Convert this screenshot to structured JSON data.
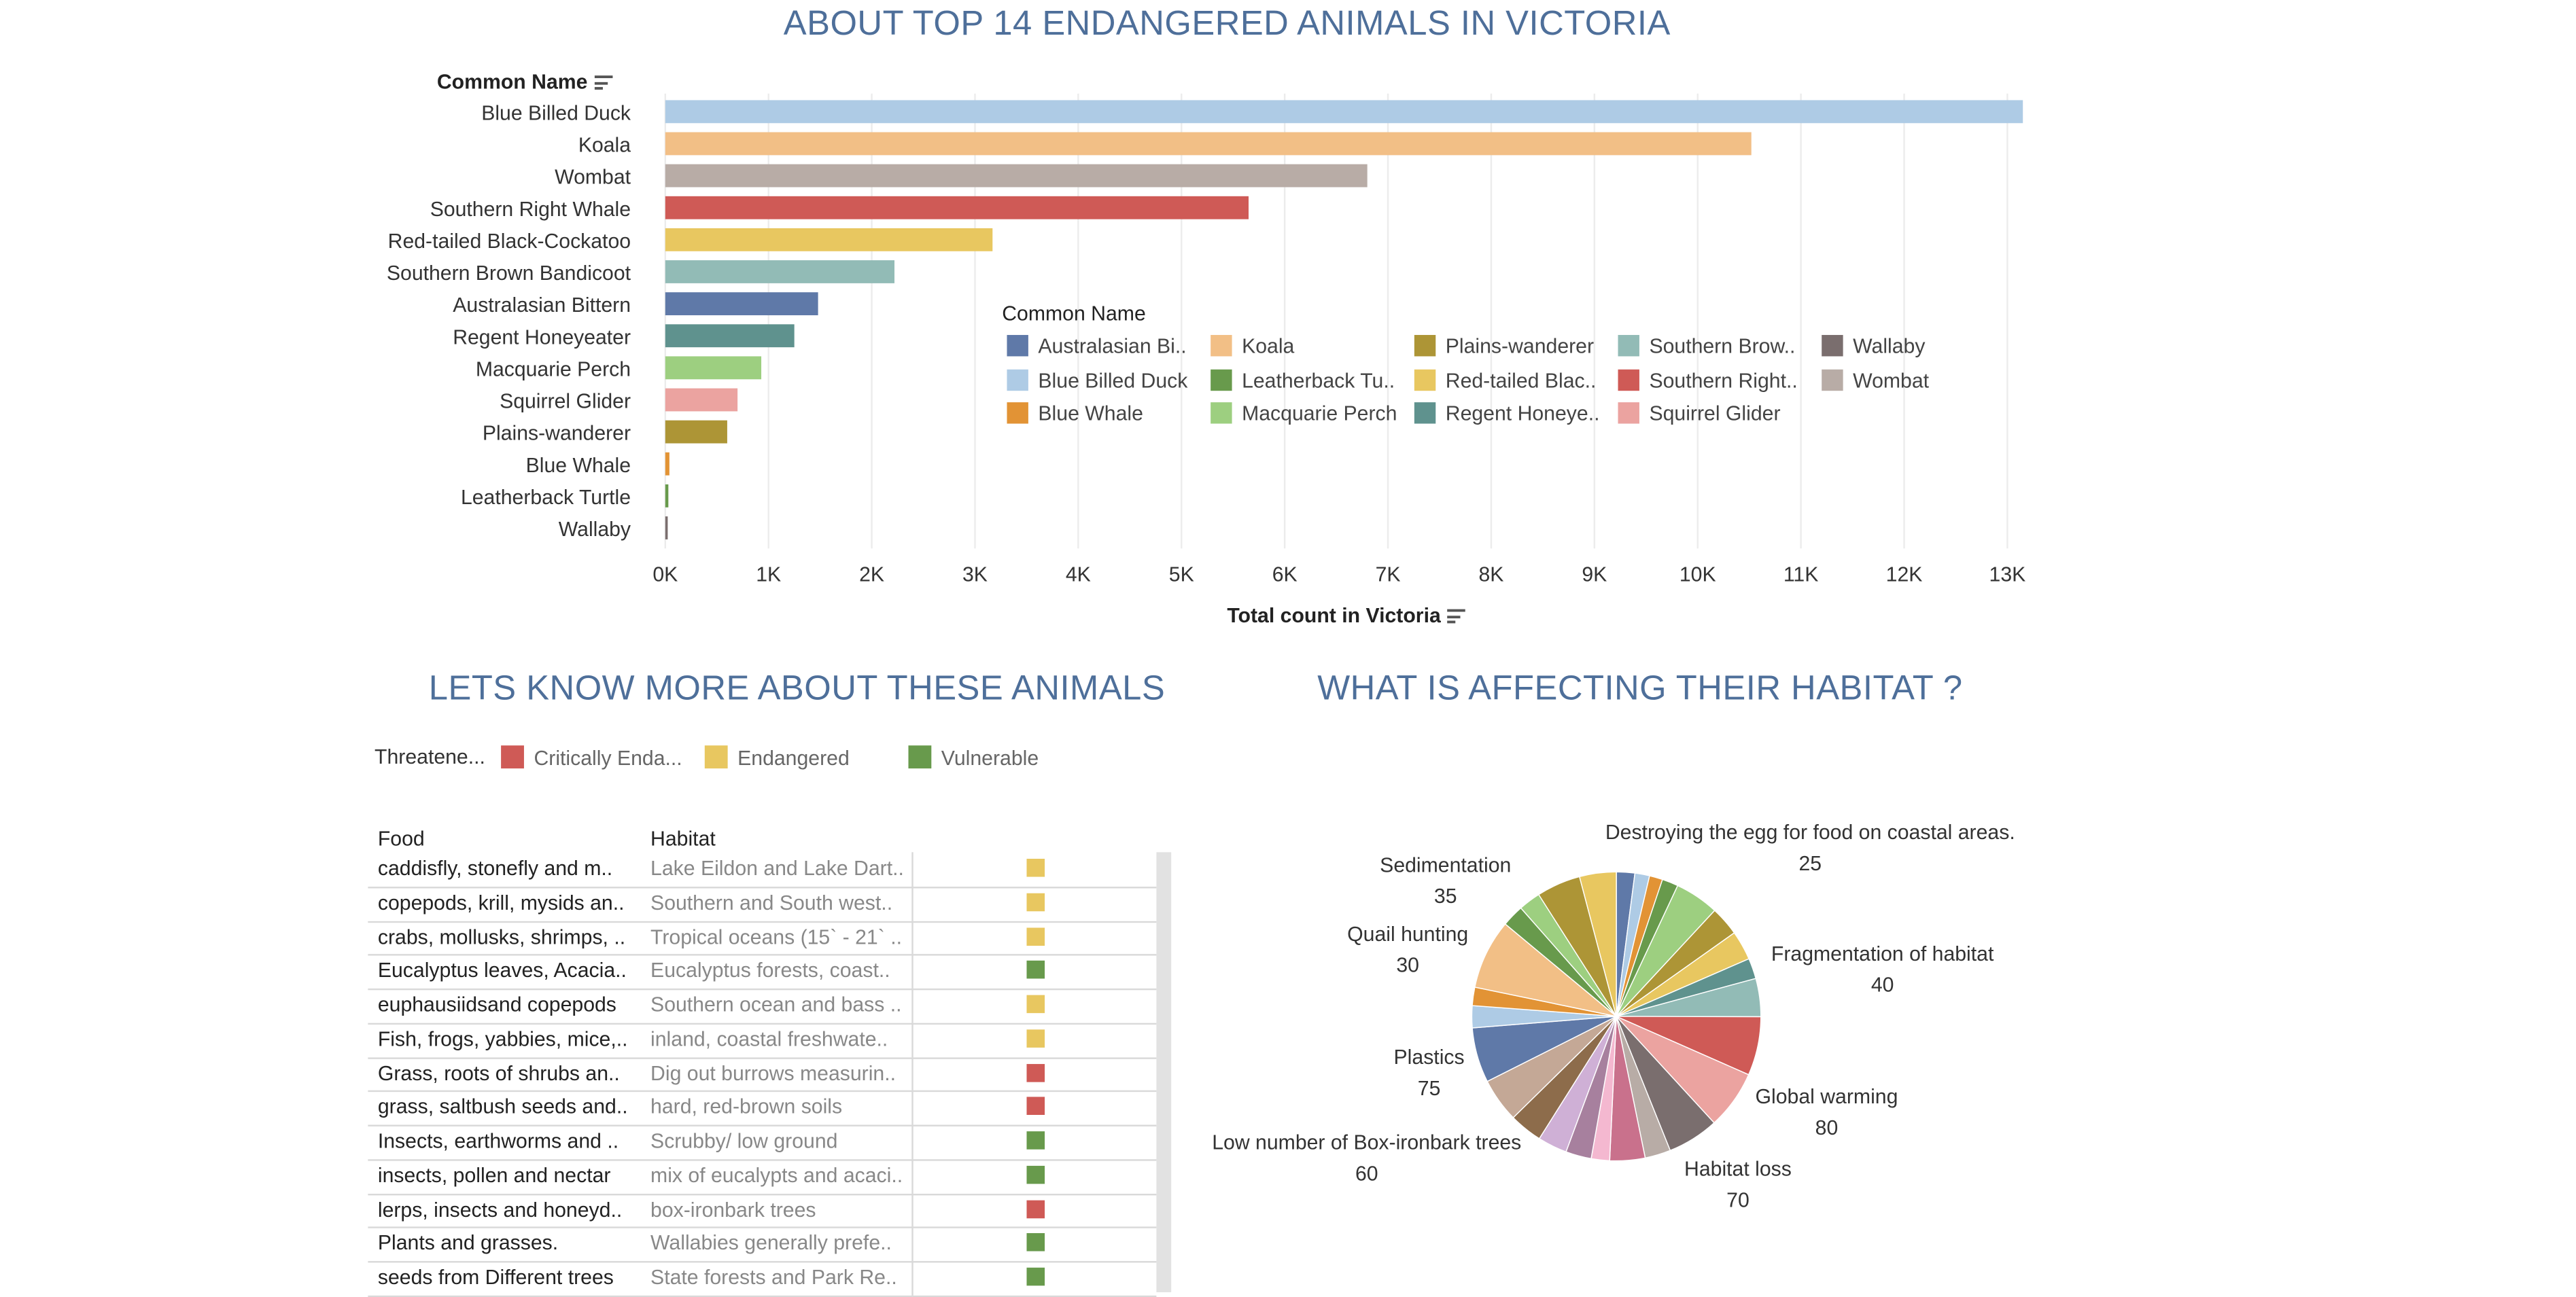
{
  "colors": {
    "title": "#4e6f9a",
    "species": {
      "Australasian Bittern": "#5f79a8",
      "Blue Billed Duck": "#aecbe5",
      "Blue Whale": "#e29335",
      "Koala": "#f2bf86",
      "Leatherback Turtle": "#689a4c",
      "Macquarie Perch": "#9dcf80",
      "Plains-wanderer": "#ad9536",
      "Red-tailed Black-Cockatoo": "#e8c760",
      "Regent Honeyeater": "#5f928e",
      "Southern Brown Bandicoot": "#92bbb6",
      "Southern Right Whale": "#cf5a56",
      "Squirrel Glider": "#eba3a0",
      "Wallaby": "#7a6e6e",
      "Wombat": "#b8aca6"
    },
    "status": {
      "Critically Endangered": "#cf5a56",
      "Endangered": "#e8c760",
      "Vulnerable": "#689a4c"
    }
  },
  "bar_section": {
    "title": "ABOUT TOP 14 ENDANGERED ANIMALS IN VICTORIA",
    "row_header": "Common Name",
    "axis_label": "Total count in Victoria",
    "legend_title": "Common Name",
    "legend_items": [
      "Australasian Bi..",
      "Blue Billed Duck",
      "Blue Whale",
      "Koala",
      "Leatherback Tu..",
      "Macquarie Perch",
      "Plains-wanderer",
      "Red-tailed Blac..",
      "Regent Honeye..",
      "Southern Brow..",
      "Southern Right..",
      "Squirrel Glider",
      "Wallaby",
      "Wombat"
    ],
    "legend_keys": [
      "Australasian Bittern",
      "Blue Billed Duck",
      "Blue Whale",
      "Koala",
      "Leatherback Turtle",
      "Macquarie Perch",
      "Plains-wanderer",
      "Red-tailed Black-Cockatoo",
      "Regent Honeyeater",
      "Southern Brown Bandicoot",
      "Southern Right Whale",
      "Squirrel Glider",
      "Wallaby",
      "Wombat"
    ]
  },
  "table_section": {
    "title": "LETS KNOW MORE ABOUT THESE ANIMALS",
    "legend_title": "Threatene...",
    "legend_items": [
      {
        "label": "Critically Enda...",
        "status": "Critically Endangered"
      },
      {
        "label": "Endangered",
        "status": "Endangered"
      },
      {
        "label": "Vulnerable",
        "status": "Vulnerable"
      }
    ],
    "headers": {
      "food": "Food",
      "habitat": "Habitat"
    },
    "rows": [
      {
        "food": "caddisfly, stonefly and m..",
        "habitat": "Lake Eildon and Lake Dart..",
        "status": "Endangered"
      },
      {
        "food": "copepods, krill, mysids an..",
        "habitat": "Southern and South west..",
        "status": "Endangered"
      },
      {
        "food": "crabs, mollusks, shrimps, ..",
        "habitat": "Tropical oceans (15` - 21` ..",
        "status": "Endangered"
      },
      {
        "food": "Eucalyptus leaves, Acacia..",
        "habitat": "Eucalyptus forests, coast..",
        "status": "Vulnerable"
      },
      {
        "food": "euphausiidsand copepods",
        "habitat": "Southern ocean and bass ..",
        "status": "Endangered"
      },
      {
        "food": "Fish, frogs, yabbies, mice,..",
        "habitat": "inland, coastal freshwate..",
        "status": "Endangered"
      },
      {
        "food": "Grass, roots of shrubs an..",
        "habitat": "Dig out burrows measurin..",
        "status": "Critically Endangered"
      },
      {
        "food": "grass, saltbush seeds and..",
        "habitat": "hard, red-brown soils",
        "status": "Critically Endangered"
      },
      {
        "food": "Insects, earthworms and ..",
        "habitat": "Scrubby/ low ground",
        "status": "Vulnerable"
      },
      {
        "food": "insects, pollen and nectar",
        "habitat": "mix of eucalypts and acaci..",
        "status": "Vulnerable"
      },
      {
        "food": "lerps, insects and honeyd..",
        "habitat": "box-ironbark trees",
        "status": "Critically Endangered"
      },
      {
        "food": "Plants and grasses.",
        "habitat": "Wallabies generally prefe..",
        "status": "Vulnerable"
      },
      {
        "food": "seeds from Different trees",
        "habitat": "State forests and Park Re..",
        "status": "Vulnerable"
      }
    ]
  },
  "pie_section": {
    "title": "WHAT IS AFFECTING THEIR HABITAT ?"
  },
  "chart_data": [
    {
      "type": "bar",
      "orientation": "horizontal",
      "title": "ABOUT TOP 14 ENDANGERED ANIMALS IN VICTORIA",
      "xlabel": "Total count in Victoria",
      "ylabel": "Common Name",
      "categories": [
        "Blue Billed Duck",
        "Koala",
        "Wombat",
        "Southern Right Whale",
        "Red-tailed Black-Cockatoo",
        "Southern Brown Bandicoot",
        "Australasian Bittern",
        "Regent Honeyeater",
        "Macquarie Perch",
        "Squirrel Glider",
        "Plains-wanderer",
        "Blue Whale",
        "Leatherback Turtle",
        "Wallaby"
      ],
      "values": [
        13150,
        10520,
        6800,
        5650,
        3170,
        2220,
        1480,
        1250,
        930,
        700,
        600,
        40,
        30,
        10
      ],
      "xlim": [
        0,
        13500
      ],
      "xticks": [
        "0K",
        "1K",
        "2K",
        "3K",
        "4K",
        "5K",
        "6K",
        "7K",
        "8K",
        "9K",
        "10K",
        "11K",
        "12K",
        "13K"
      ],
      "grid": true,
      "legend": "inside-right"
    },
    {
      "type": "pie",
      "title": "WHAT IS AFFECTING THEIR HABITAT ?",
      "slices": [
        {
          "color": "#5f79a8",
          "value": 25
        },
        {
          "color": "#aecbe5",
          "value": 20
        },
        {
          "color": "#e29335",
          "value": 18
        },
        {
          "color": "#689a4c",
          "value": 22
        },
        {
          "color": "#9dcf80",
          "value": 60
        },
        {
          "color": "#ad9536",
          "value": 40
        },
        {
          "color": "#e8c760",
          "value": 40
        },
        {
          "color": "#5f928e",
          "value": 28
        },
        {
          "color": "#92bbb6",
          "value": 52
        },
        {
          "color": "#cf5a56",
          "value": 80
        },
        {
          "color": "#eba3a0",
          "value": 80
        },
        {
          "color": "#7a6e6e",
          "value": 70
        },
        {
          "color": "#b8aca6",
          "value": 35
        },
        {
          "color": "#c9718c",
          "value": 48
        },
        {
          "color": "#f4b8d0",
          "value": 25
        },
        {
          "color": "#a7809e",
          "value": 35
        },
        {
          "color": "#cfb0d6",
          "value": 40
        },
        {
          "color": "#8d6c4b",
          "value": 45
        },
        {
          "color": "#c4a896",
          "value": 60
        },
        {
          "color": "#5f79a8",
          "value": 75
        },
        {
          "color": "#aecbe5",
          "value": 30
        },
        {
          "color": "#e29335",
          "value": 25
        },
        {
          "color": "#f2bf86",
          "value": 95
        },
        {
          "color": "#689a4c",
          "value": 30
        },
        {
          "color": "#9dcf80",
          "value": 30
        },
        {
          "color": "#ad9536",
          "value": 60
        },
        {
          "color": "#e8c760",
          "value": 50
        }
      ],
      "labels": [
        {
          "name": "Destroying the egg for food on coastal areas.",
          "value": "25"
        },
        {
          "name": "Fragmentation of habitat",
          "value": "40"
        },
        {
          "name": "Global warming",
          "value": "80"
        },
        {
          "name": "Habitat loss",
          "value": "70"
        },
        {
          "name": "Low number of Box-ironbark trees",
          "value": "60"
        },
        {
          "name": "Plastics",
          "value": "75"
        },
        {
          "name": "Quail hunting",
          "value": "30"
        },
        {
          "name": "Sedimentation",
          "value": "35"
        }
      ]
    }
  ]
}
